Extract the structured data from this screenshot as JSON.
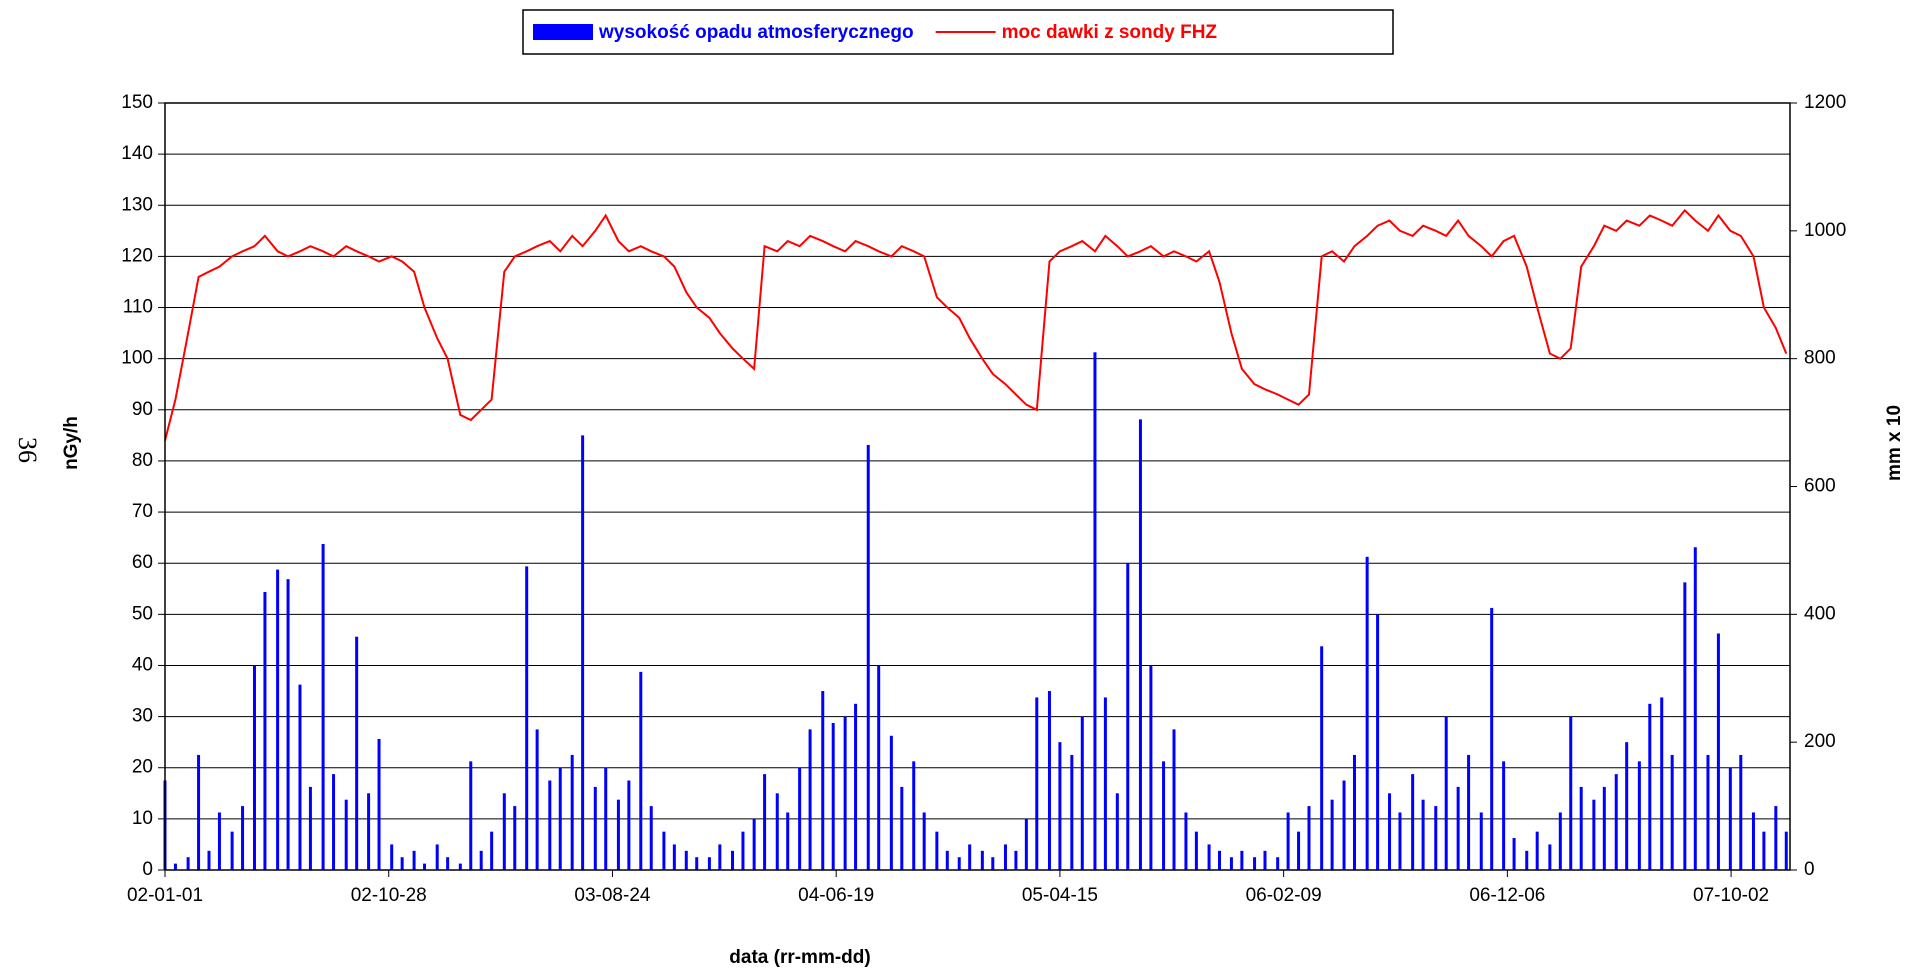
{
  "page_label": "36",
  "chart_data": {
    "type": "bar_line",
    "x_label": "data (rr-mm-dd)",
    "y_label": "nGy/h",
    "y2_label": "mm x 10",
    "x": [
      "02-01-01",
      "02-01-15",
      "02-02-01",
      "02-02-15",
      "02-03-01",
      "02-03-15",
      "02-04-01",
      "02-04-15",
      "02-05-01",
      "02-05-15",
      "02-06-01",
      "02-06-15",
      "02-07-01",
      "02-07-15",
      "02-08-01",
      "02-08-15",
      "02-09-01",
      "02-09-15",
      "02-10-01",
      "02-10-15",
      "02-11-01",
      "02-11-15",
      "02-12-01",
      "02-12-15",
      "03-01-01",
      "03-01-15",
      "03-02-01",
      "03-02-15",
      "03-03-01",
      "03-03-15",
      "03-04-01",
      "03-04-15",
      "03-05-01",
      "03-05-15",
      "03-06-01",
      "03-06-15",
      "03-07-01",
      "03-07-15",
      "03-08-01",
      "03-08-15",
      "03-09-01",
      "03-09-15",
      "03-10-01",
      "03-10-15",
      "03-11-01",
      "03-11-15",
      "03-12-01",
      "03-12-15",
      "04-01-01",
      "04-01-15",
      "04-02-01",
      "04-02-15",
      "04-03-01",
      "04-03-15",
      "04-04-01",
      "04-04-15",
      "04-05-01",
      "04-05-15",
      "04-06-01",
      "04-06-15",
      "04-07-01",
      "04-07-15",
      "04-08-01",
      "04-08-15",
      "04-09-01",
      "04-09-15",
      "04-10-01",
      "04-10-15",
      "04-11-01",
      "04-11-15",
      "04-12-01",
      "04-12-15",
      "05-01-01",
      "05-01-15",
      "05-02-01",
      "05-02-15",
      "05-03-01",
      "05-03-15",
      "05-04-01",
      "05-04-15",
      "05-05-01",
      "05-05-15",
      "05-06-01",
      "05-06-15",
      "05-07-01",
      "05-07-15",
      "05-08-01",
      "05-08-15",
      "05-09-01",
      "05-09-15",
      "05-10-01",
      "05-10-15",
      "05-11-01",
      "05-11-15",
      "05-12-01",
      "05-12-15",
      "06-01-01",
      "06-01-15",
      "06-02-01",
      "06-02-15",
      "06-03-01",
      "06-03-15",
      "06-04-01",
      "06-04-15",
      "06-05-01",
      "06-05-15",
      "06-06-01",
      "06-06-15",
      "06-07-01",
      "06-07-15",
      "06-08-01",
      "06-08-15",
      "06-09-01",
      "06-09-15",
      "06-10-01",
      "06-10-15",
      "06-11-01",
      "06-11-15",
      "06-12-01",
      "06-12-15",
      "07-01-01",
      "07-01-15",
      "07-02-01",
      "07-02-15",
      "07-03-01",
      "07-03-15",
      "07-04-01",
      "07-04-15",
      "07-05-01",
      "07-05-15",
      "07-06-01",
      "07-06-15",
      "07-07-01",
      "07-07-15",
      "07-08-01",
      "07-08-15",
      "07-09-01",
      "07-09-15",
      "07-10-01",
      "07-10-15",
      "07-11-01",
      "07-11-15",
      "07-12-01",
      "07-12-15"
    ],
    "series": [
      {
        "name": "wysokość opadu atmosferycznego",
        "color": "#0000ff",
        "type": "bar",
        "axis": "y2",
        "values": [
          140,
          10,
          20,
          180,
          30,
          90,
          60,
          100,
          320,
          435,
          470,
          455,
          290,
          130,
          510,
          150,
          110,
          365,
          120,
          205,
          40,
          20,
          30,
          10,
          40,
          20,
          10,
          170,
          30,
          60,
          120,
          100,
          475,
          220,
          140,
          160,
          180,
          680,
          130,
          160,
          110,
          140,
          310,
          100,
          60,
          40,
          30,
          20,
          20,
          40,
          30,
          60,
          80,
          150,
          120,
          90,
          160,
          220,
          280,
          230,
          240,
          260,
          665,
          320,
          210,
          130,
          170,
          90,
          60,
          30,
          20,
          40,
          30,
          20,
          40,
          30,
          80,
          270,
          280,
          200,
          180,
          240,
          810,
          270,
          120,
          480,
          705,
          320,
          170,
          220,
          90,
          60,
          40,
          30,
          20,
          30,
          20,
          30,
          20,
          90,
          60,
          100,
          350,
          110,
          140,
          180,
          490,
          400,
          120,
          90,
          150,
          110,
          100,
          240,
          130,
          180,
          90,
          410,
          170,
          50,
          30,
          60,
          40,
          90,
          240,
          130,
          110,
          130,
          150,
          200,
          170,
          260,
          270,
          180,
          450,
          505,
          180,
          370,
          160,
          180,
          90,
          60,
          100,
          60
        ]
      },
      {
        "name": "moc dawki z sondy FHZ",
        "color": "#ff0000",
        "type": "line",
        "values": [
          84,
          92,
          105,
          116,
          117,
          118,
          120,
          121,
          122,
          124,
          121,
          120,
          121,
          122,
          121,
          120,
          122,
          121,
          120,
          119,
          120,
          119,
          117,
          110,
          104,
          100,
          89,
          88,
          90,
          92,
          117,
          120,
          121,
          122,
          123,
          121,
          124,
          122,
          125,
          128,
          123,
          121,
          122,
          121,
          120,
          118,
          113,
          110,
          108,
          105,
          102,
          100,
          98,
          122,
          121,
          123,
          122,
          124,
          123,
          122,
          121,
          123,
          122,
          121,
          120,
          122,
          121,
          120,
          112,
          110,
          108,
          104,
          100,
          97,
          95,
          93,
          91,
          90,
          119,
          121,
          122,
          123,
          121,
          124,
          122,
          120,
          121,
          122,
          120,
          121,
          120,
          119,
          121,
          115,
          105,
          98,
          95,
          94,
          93,
          92,
          91,
          93,
          120,
          121,
          119,
          122,
          124,
          126,
          127,
          125,
          124,
          126,
          125,
          124,
          127,
          124,
          122,
          120,
          123,
          124,
          118,
          110,
          101,
          100,
          102,
          118,
          122,
          126,
          125,
          127,
          126,
          128,
          127,
          126,
          129,
          127,
          125,
          128,
          125,
          124,
          120,
          110,
          106,
          101
        ]
      }
    ],
    "xlim": [
      "02-01-01",
      "07-12-20"
    ],
    "xticks": [
      "02-01-01",
      "02-10-28",
      "03-08-24",
      "04-06-19",
      "05-04-15",
      "06-02-09",
      "06-12-06",
      "07-10-02"
    ],
    "ylim": [
      0,
      150
    ],
    "yticks": [
      0,
      10,
      20,
      30,
      40,
      50,
      60,
      70,
      80,
      90,
      100,
      110,
      120,
      130,
      140,
      150
    ],
    "y2lim": [
      0,
      1200
    ],
    "y2ticks": [
      0,
      200,
      400,
      600,
      800,
      1000,
      1200
    ],
    "grid": true,
    "legend": "top"
  }
}
